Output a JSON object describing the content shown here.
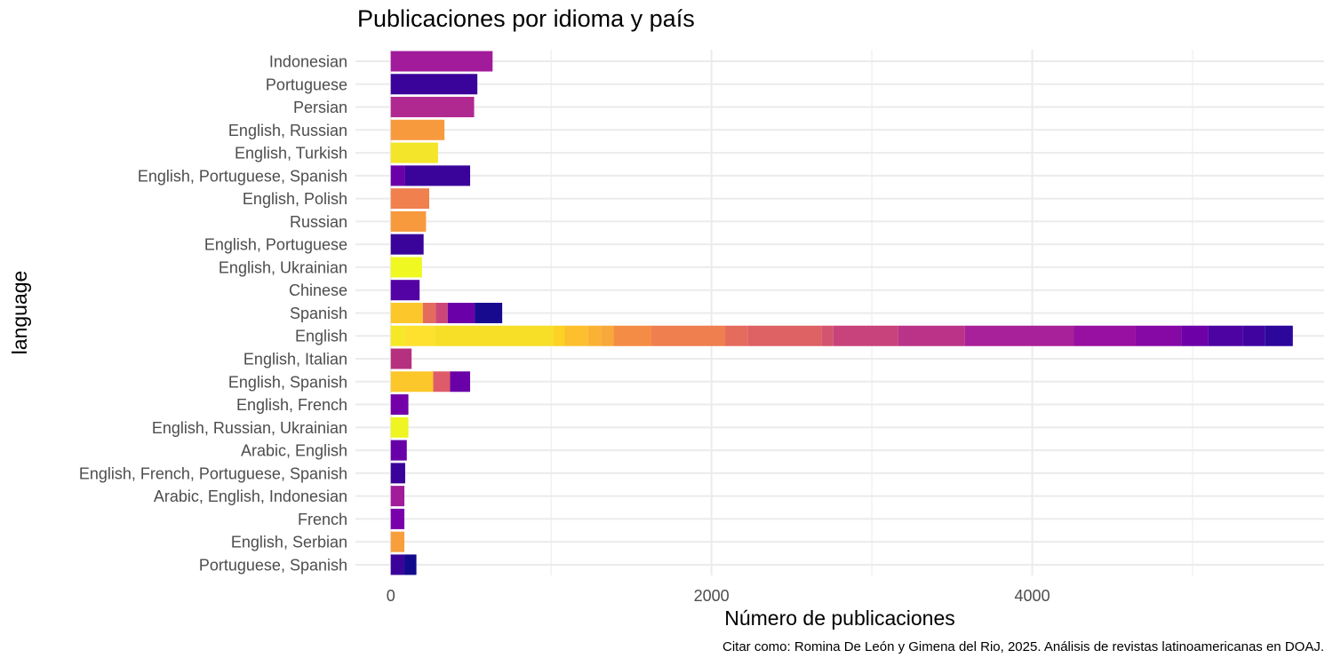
{
  "chart_data": {
    "type": "bar",
    "orientation": "horizontal",
    "stacked": true,
    "title": "Publicaciones por idioma y país",
    "xlabel": "Número de publicaciones",
    "ylabel": "language",
    "caption": "Citar como: Romina De León y Gimena del Rio, 2025. Análisis de revistas latinoamericanas en DOAJ.",
    "xlim": [
      -220,
      5820
    ],
    "xticks": [
      0,
      2000,
      4000
    ],
    "xtick_labels": [
      "0",
      "2000",
      "4000"
    ],
    "xgrid_minor": [
      1000,
      3000,
      5000
    ],
    "grid": true,
    "legend": "none",
    "categories": [
      "Indonesian",
      "Portuguese",
      "Persian",
      "English, Russian",
      "English, Turkish",
      "English, Portuguese, Spanish",
      "English, Polish",
      "Russian",
      "English, Portuguese",
      "English, Ukrainian",
      "Chinese",
      "Spanish",
      "English",
      "English, Italian",
      "English, Spanish",
      "English, French",
      "English, Russian, Ukrainian",
      "Arabic, English",
      "English, French, Portuguese, Spanish",
      "Arabic, English, Indonesian",
      "French",
      "English, Serbian",
      "Portuguese, Spanish"
    ],
    "bars": [
      {
        "category": "Indonesian",
        "segments": [
          {
            "value": 635,
            "color": "#a11b9b"
          }
        ]
      },
      {
        "category": "Portuguese",
        "segments": [
          {
            "value": 540,
            "color": "#3a049a"
          }
        ]
      },
      {
        "category": "Persian",
        "segments": [
          {
            "value": 520,
            "color": "#b02991"
          }
        ]
      },
      {
        "category": "English, Russian",
        "segments": [
          {
            "value": 335,
            "color": "#f79a3e"
          }
        ]
      },
      {
        "category": "English, Turkish",
        "segments": [
          {
            "value": 295,
            "color": "#f3e529"
          }
        ]
      },
      {
        "category": "English, Portuguese, Spanish",
        "segments": [
          {
            "value": 90,
            "color": "#6a00a8"
          },
          {
            "value": 405,
            "color": "#3a049a"
          }
        ]
      },
      {
        "category": "English, Polish",
        "segments": [
          {
            "value": 240,
            "color": "#f0804e"
          }
        ]
      },
      {
        "category": "Russian",
        "segments": [
          {
            "value": 220,
            "color": "#f79a3e"
          }
        ]
      },
      {
        "category": "English, Portuguese",
        "segments": [
          {
            "value": 205,
            "color": "#3a049a"
          }
        ]
      },
      {
        "category": "English, Ukrainian",
        "segments": [
          {
            "value": 195,
            "color": "#eff821"
          }
        ]
      },
      {
        "category": "Chinese",
        "segments": [
          {
            "value": 180,
            "color": "#5302a3"
          }
        ]
      },
      {
        "category": "Spanish",
        "segments": [
          {
            "value": 200,
            "color": "#fbc72a"
          },
          {
            "value": 80,
            "color": "#e56b5d"
          },
          {
            "value": 75,
            "color": "#cc4778"
          },
          {
            "value": 170,
            "color": "#6a00a8"
          },
          {
            "value": 170,
            "color": "#170a8f"
          }
        ]
      },
      {
        "category": "English",
        "segments": [
          {
            "value": 80,
            "color": "#f5e926"
          },
          {
            "value": 195,
            "color": "#fde12e"
          },
          {
            "value": 740,
            "color": "#f7de27"
          },
          {
            "value": 70,
            "color": "#fcd225"
          },
          {
            "value": 145,
            "color": "#fdbf2d"
          },
          {
            "value": 80,
            "color": "#fbb234"
          },
          {
            "value": 80,
            "color": "#f9a93b"
          },
          {
            "value": 235,
            "color": "#f58c45"
          },
          {
            "value": 460,
            "color": "#ef7f4f"
          },
          {
            "value": 140,
            "color": "#e56b5d"
          },
          {
            "value": 460,
            "color": "#de6164"
          },
          {
            "value": 75,
            "color": "#d4546d"
          },
          {
            "value": 405,
            "color": "#c8437b"
          },
          {
            "value": 415,
            "color": "#ba3388"
          },
          {
            "value": 680,
            "color": "#a8219a"
          },
          {
            "value": 385,
            "color": "#9810a1"
          },
          {
            "value": 285,
            "color": "#8709a5"
          },
          {
            "value": 165,
            "color": "#6e00a8"
          },
          {
            "value": 220,
            "color": "#4d02a2"
          },
          {
            "value": 135,
            "color": "#3f03a0"
          },
          {
            "value": 175,
            "color": "#2d069c"
          }
        ]
      },
      {
        "category": "English, Italian",
        "segments": [
          {
            "value": 130,
            "color": "#b5317f"
          }
        ]
      },
      {
        "category": "English, Spanish",
        "segments": [
          {
            "value": 265,
            "color": "#fbc72a"
          },
          {
            "value": 105,
            "color": "#de5c69"
          },
          {
            "value": 125,
            "color": "#6a00a8"
          }
        ]
      },
      {
        "category": "English, French",
        "segments": [
          {
            "value": 110,
            "color": "#7400a9"
          }
        ]
      },
      {
        "category": "English, Russian, Ukrainian",
        "segments": [
          {
            "value": 110,
            "color": "#eef521"
          }
        ]
      },
      {
        "category": "Arabic, English",
        "segments": [
          {
            "value": 100,
            "color": "#6700a7"
          }
        ]
      },
      {
        "category": "English, French, Portuguese, Spanish",
        "segments": [
          {
            "value": 90,
            "color": "#3a049a"
          }
        ]
      },
      {
        "category": "Arabic, English, Indonesian",
        "segments": [
          {
            "value": 85,
            "color": "#a11b9b"
          }
        ]
      },
      {
        "category": "French",
        "segments": [
          {
            "value": 85,
            "color": "#7a00ab"
          }
        ]
      },
      {
        "category": "English, Serbian",
        "segments": [
          {
            "value": 85,
            "color": "#f89f3c"
          }
        ]
      },
      {
        "category": "Portuguese, Spanish",
        "segments": [
          {
            "value": 85,
            "color": "#3a049a"
          },
          {
            "value": 75,
            "color": "#120a8c"
          }
        ]
      }
    ]
  }
}
